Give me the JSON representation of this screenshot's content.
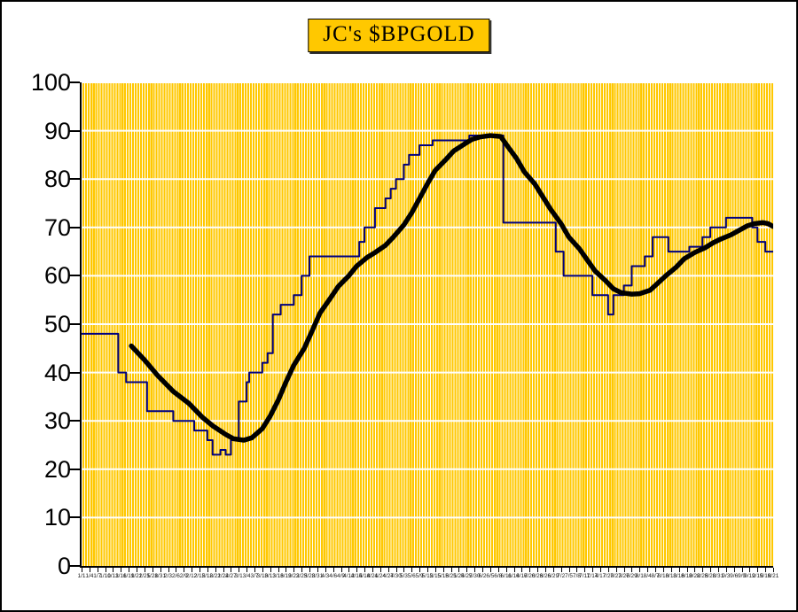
{
  "chart_data": {
    "type": "line",
    "title": "JC's $BPGOLD",
    "subtitle": "",
    "xlabel": "",
    "ylabel": "",
    "ylim": [
      0,
      100
    ],
    "y_ticks": [
      0,
      10,
      20,
      30,
      40,
      50,
      60,
      70,
      80,
      90,
      100
    ],
    "grid": "horizontal white lines each 10 units; dense vertical white stripes one per day",
    "legend_position": "none",
    "plot_bg_color": "#FFC800",
    "gridline_color": "#FFFFFF",
    "x_unit": "days since 1/1, one tick label every 3 days",
    "x_day_range": [
      0,
      264
    ],
    "x_tick_labels": [
      "1/1",
      "1/4",
      "1/7",
      "1/10",
      "1/13",
      "1/16",
      "1/19",
      "1/22",
      "1/25",
      "1/28",
      "1/31",
      "2/3",
      "2/6",
      "2/9",
      "2/12",
      "2/15",
      "2/18",
      "2/21",
      "2/24",
      "2/27",
      "3/1",
      "3/4",
      "3/7",
      "3/10",
      "3/13",
      "3/16",
      "3/19",
      "3/22",
      "3/25",
      "3/28",
      "3/31",
      "4/3",
      "4/6",
      "4/9",
      "4/12",
      "4/15",
      "4/18",
      "4/21",
      "4/24",
      "4/27",
      "4/30",
      "5/3",
      "5/6",
      "5/9",
      "5/12",
      "5/15",
      "5/18",
      "5/21",
      "5/24",
      "5/27",
      "5/30",
      "6/2",
      "6/5",
      "6/8",
      "6/11",
      "6/14",
      "6/17",
      "6/20",
      "6/23",
      "6/26",
      "6/29",
      "7/2",
      "7/5",
      "7/8",
      "7/11",
      "7/14",
      "7/17",
      "7/20",
      "7/23",
      "7/26",
      "7/29",
      "8/1",
      "8/4",
      "8/7",
      "8/10",
      "8/13",
      "8/16",
      "8/19",
      "8/22",
      "8/25",
      "8/28",
      "8/31",
      "9/3",
      "9/6",
      "9/9",
      "9/12",
      "9/15",
      "9/18",
      "9/21"
    ],
    "series": [
      {
        "name": "bpgold-daily-step-line",
        "color": "#000080",
        "stroke_width": 2,
        "style": "step",
        "points": [
          [
            0,
            48
          ],
          [
            14,
            40
          ],
          [
            17,
            38
          ],
          [
            25,
            32
          ],
          [
            35,
            30
          ],
          [
            43,
            28
          ],
          [
            48,
            26
          ],
          [
            50,
            23
          ],
          [
            53,
            24
          ],
          [
            55,
            23
          ],
          [
            57,
            26
          ],
          [
            60,
            34
          ],
          [
            63,
            38
          ],
          [
            64,
            40
          ],
          [
            69,
            42
          ],
          [
            71,
            44
          ],
          [
            73,
            52
          ],
          [
            76,
            54
          ],
          [
            81,
            56
          ],
          [
            84,
            60
          ],
          [
            87,
            64
          ],
          [
            106,
            67
          ],
          [
            108,
            70
          ],
          [
            112,
            74
          ],
          [
            116,
            76
          ],
          [
            118,
            78
          ],
          [
            120,
            80
          ],
          [
            123,
            83
          ],
          [
            125,
            85
          ],
          [
            129,
            87
          ],
          [
            134,
            88
          ],
          [
            148,
            89
          ],
          [
            161,
            71
          ],
          [
            181,
            65
          ],
          [
            184,
            60
          ],
          [
            195,
            56
          ],
          [
            201,
            52
          ],
          [
            203,
            56
          ],
          [
            207,
            58
          ],
          [
            210,
            62
          ],
          [
            215,
            64
          ],
          [
            218,
            68
          ],
          [
            224,
            65
          ],
          [
            232,
            66
          ],
          [
            237,
            68
          ],
          [
            240,
            70
          ],
          [
            246,
            72
          ],
          [
            256,
            70
          ],
          [
            258,
            67
          ],
          [
            261,
            65
          ],
          [
            264,
            65
          ]
        ]
      },
      {
        "name": "bpgold-moving-average-line",
        "color": "#000000",
        "stroke_width": 5.5,
        "style": "smooth",
        "points": [
          [
            19,
            45.5
          ],
          [
            24,
            42.6
          ],
          [
            29,
            39.4
          ],
          [
            35,
            36.1
          ],
          [
            41,
            33.6
          ],
          [
            46,
            30.8
          ],
          [
            50,
            29
          ],
          [
            55,
            27.2
          ],
          [
            58,
            26.3
          ],
          [
            62,
            26
          ],
          [
            65,
            26.5
          ],
          [
            69,
            28.4
          ],
          [
            72,
            31
          ],
          [
            75,
            34.2
          ],
          [
            78,
            38
          ],
          [
            81,
            41.5
          ],
          [
            85,
            45
          ],
          [
            88,
            48.6
          ],
          [
            91,
            52.3
          ],
          [
            95,
            55.4
          ],
          [
            98,
            57.8
          ],
          [
            102,
            60
          ],
          [
            105,
            62
          ],
          [
            109,
            63.8
          ],
          [
            112,
            64.8
          ],
          [
            116,
            66.3
          ],
          [
            119,
            68
          ],
          [
            123,
            70.5
          ],
          [
            126,
            73
          ],
          [
            129,
            76
          ],
          [
            132,
            79
          ],
          [
            135,
            81.8
          ],
          [
            139,
            84
          ],
          [
            142,
            85.8
          ],
          [
            146,
            87.2
          ],
          [
            149,
            88.2
          ],
          [
            152,
            88.7
          ],
          [
            156,
            89
          ],
          [
            160,
            88.8
          ],
          [
            163,
            86.5
          ],
          [
            166,
            84.3
          ],
          [
            169,
            81.5
          ],
          [
            173,
            79
          ],
          [
            176,
            76.4
          ],
          [
            179,
            73.8
          ],
          [
            183,
            70.8
          ],
          [
            186,
            68
          ],
          [
            190,
            65.6
          ],
          [
            193,
            63.3
          ],
          [
            196,
            61
          ],
          [
            200,
            59
          ],
          [
            203,
            57.3
          ],
          [
            206,
            56.5
          ],
          [
            210,
            56.2
          ],
          [
            213,
            56.3
          ],
          [
            217,
            57
          ],
          [
            220,
            58.5
          ],
          [
            223,
            60
          ],
          [
            227,
            61.8
          ],
          [
            230,
            63.5
          ],
          [
            234,
            64.8
          ],
          [
            238,
            65.8
          ],
          [
            241,
            66.8
          ],
          [
            244,
            67.6
          ],
          [
            248,
            68.5
          ],
          [
            251,
            69.4
          ],
          [
            254,
            70.3
          ],
          [
            257,
            70.8
          ],
          [
            260,
            71
          ],
          [
            262,
            70.8
          ],
          [
            264,
            70.2
          ]
        ]
      }
    ]
  }
}
